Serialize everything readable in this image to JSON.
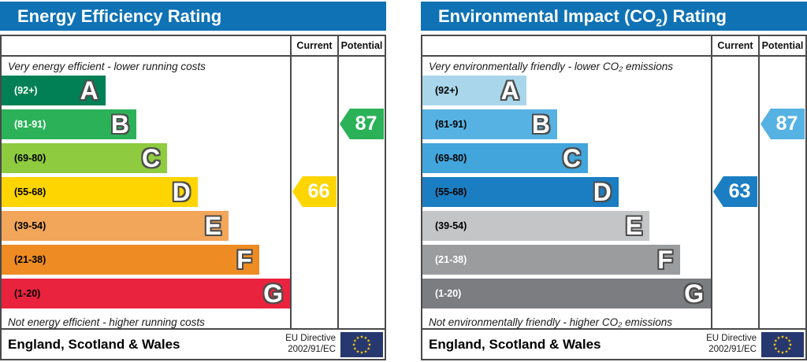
{
  "columns": {
    "current": "Current",
    "potential": "Potential"
  },
  "footer": {
    "region": "England, Scotland & Wales",
    "directive_line1": "EU Directive",
    "directive_line2": "2002/91/EC"
  },
  "colors": {
    "header_blue": "#0e72b5",
    "border_gray": "#4a4a4b",
    "eu_flag_blue": "#26386f",
    "eu_star_yellow": "#ffcc00"
  },
  "chart_data": [
    {
      "type": "bar",
      "title_parts": [
        {
          "text": "Energy Efficiency Rating",
          "sub": false
        }
      ],
      "top_caption": "Very energy efficient - lower running costs",
      "bottom_caption": "Not energy efficient - higher running costs",
      "bands": [
        {
          "letter": "A",
          "range": "(92+)",
          "color": "#008054",
          "label_color": "#ffffff",
          "width_pct": 36.0
        },
        {
          "letter": "B",
          "range": "(81-91)",
          "color": "#2bb259",
          "label_color": "#ffffff",
          "width_pct": 46.7
        },
        {
          "letter": "C",
          "range": "(69-80)",
          "color": "#8ecb3f",
          "label_color": "#000000",
          "width_pct": 57.4
        },
        {
          "letter": "D",
          "range": "(55-68)",
          "color": "#ffd500",
          "label_color": "#000000",
          "width_pct": 68.0
        },
        {
          "letter": "E",
          "range": "(39-54)",
          "color": "#f2a65a",
          "label_color": "#000000",
          "width_pct": 78.7
        },
        {
          "letter": "F",
          "range": "(21-38)",
          "color": "#ee8b22",
          "label_color": "#000000",
          "width_pct": 89.3
        },
        {
          "letter": "G",
          "range": "(1-20)",
          "color": "#e9233d",
          "label_color": "#000000",
          "width_pct": 100
        }
      ],
      "current": {
        "value": 66,
        "band": "D",
        "band_index": 3,
        "color": "#ffd500"
      },
      "potential": {
        "value": 87,
        "band": "B",
        "band_index": 1,
        "color": "#2bb259"
      }
    },
    {
      "type": "bar",
      "title_parts": [
        {
          "text": "Environmental Impact (CO",
          "sub": false
        },
        {
          "text": "2",
          "sub": true
        },
        {
          "text": ") Rating",
          "sub": false
        }
      ],
      "top_caption": "Very environmentally friendly - lower CO₂ emissions",
      "bottom_caption": "Not environmentally friendly - higher CO₂ emissions",
      "bands": [
        {
          "letter": "A",
          "range": "(92+)",
          "color": "#a9d6ea",
          "label_color": "#000000",
          "width_pct": 36.0
        },
        {
          "letter": "B",
          "range": "(81-91)",
          "color": "#56b2e2",
          "label_color": "#000000",
          "width_pct": 46.7
        },
        {
          "letter": "C",
          "range": "(69-80)",
          "color": "#42a5dc",
          "label_color": "#000000",
          "width_pct": 57.4
        },
        {
          "letter": "D",
          "range": "(55-68)",
          "color": "#1b7ec2",
          "label_color": "#000000",
          "width_pct": 68.0
        },
        {
          "letter": "E",
          "range": "(39-54)",
          "color": "#c4c5c7",
          "label_color": "#000000",
          "width_pct": 78.7
        },
        {
          "letter": "F",
          "range": "(21-38)",
          "color": "#9b9c9e",
          "label_color": "#ffffff",
          "width_pct": 89.3
        },
        {
          "letter": "G",
          "range": "(1-20)",
          "color": "#7c7d80",
          "label_color": "#ffffff",
          "width_pct": 100
        }
      ],
      "current": {
        "value": 63,
        "band": "D",
        "band_index": 3,
        "color": "#1b7ec2"
      },
      "potential": {
        "value": 87,
        "band": "B",
        "band_index": 1,
        "color": "#56b2e2"
      }
    }
  ]
}
